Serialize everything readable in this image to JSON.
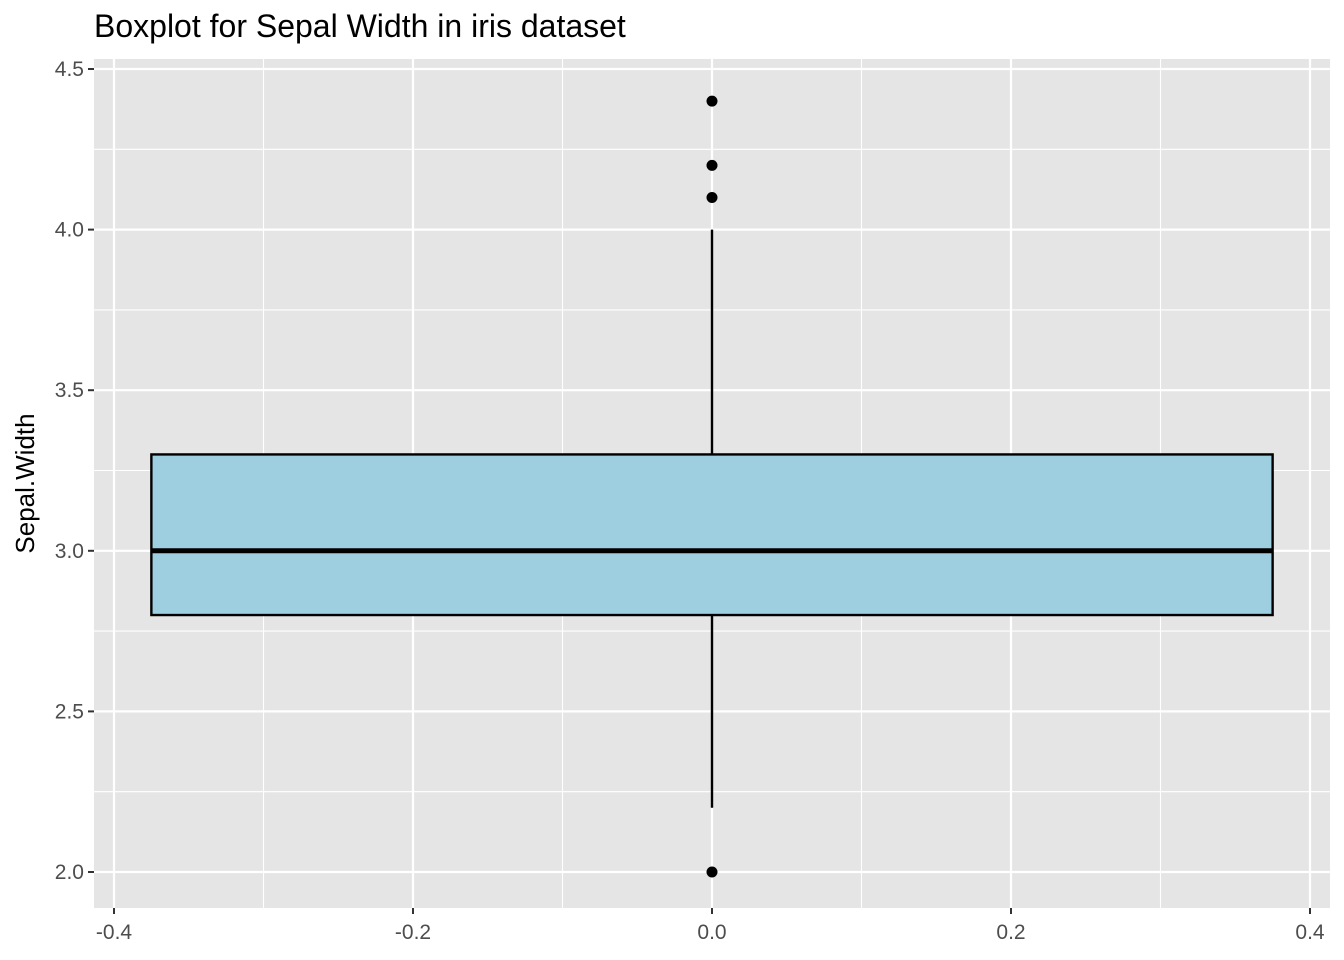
{
  "chart_data": {
    "type": "boxplot",
    "title": "Boxplot for Sepal Width in iris dataset",
    "xlabel": "",
    "ylabel": "Sepal.Width",
    "xlim": [
      -0.4,
      0.4
    ],
    "ylim": [
      2.0,
      4.5
    ],
    "x_ticks": [
      -0.4,
      -0.2,
      0.0,
      0.2,
      0.4
    ],
    "x_tick_labels": [
      "-0.4",
      "-0.2",
      "0.0",
      "0.2",
      "0.4"
    ],
    "y_ticks": [
      2.0,
      2.5,
      3.0,
      3.5,
      4.0,
      4.5
    ],
    "y_tick_labels": [
      "2.0",
      "2.5",
      "3.0",
      "3.5",
      "4.0",
      "4.5"
    ],
    "grid": true,
    "legend": "none",
    "box": {
      "x_center": 0.0,
      "x_left": -0.375,
      "x_right": 0.375,
      "whisker_low": 2.2,
      "q1": 2.8,
      "median": 3.0,
      "q3": 3.3,
      "whisker_high": 4.0,
      "outliers": [
        4.4,
        4.2,
        4.1,
        2.0
      ]
    },
    "colors": {
      "box_fill": "#9ecfe0",
      "panel_background": "#e5e5e5",
      "grid": "#ffffff",
      "line": "#000000"
    }
  }
}
